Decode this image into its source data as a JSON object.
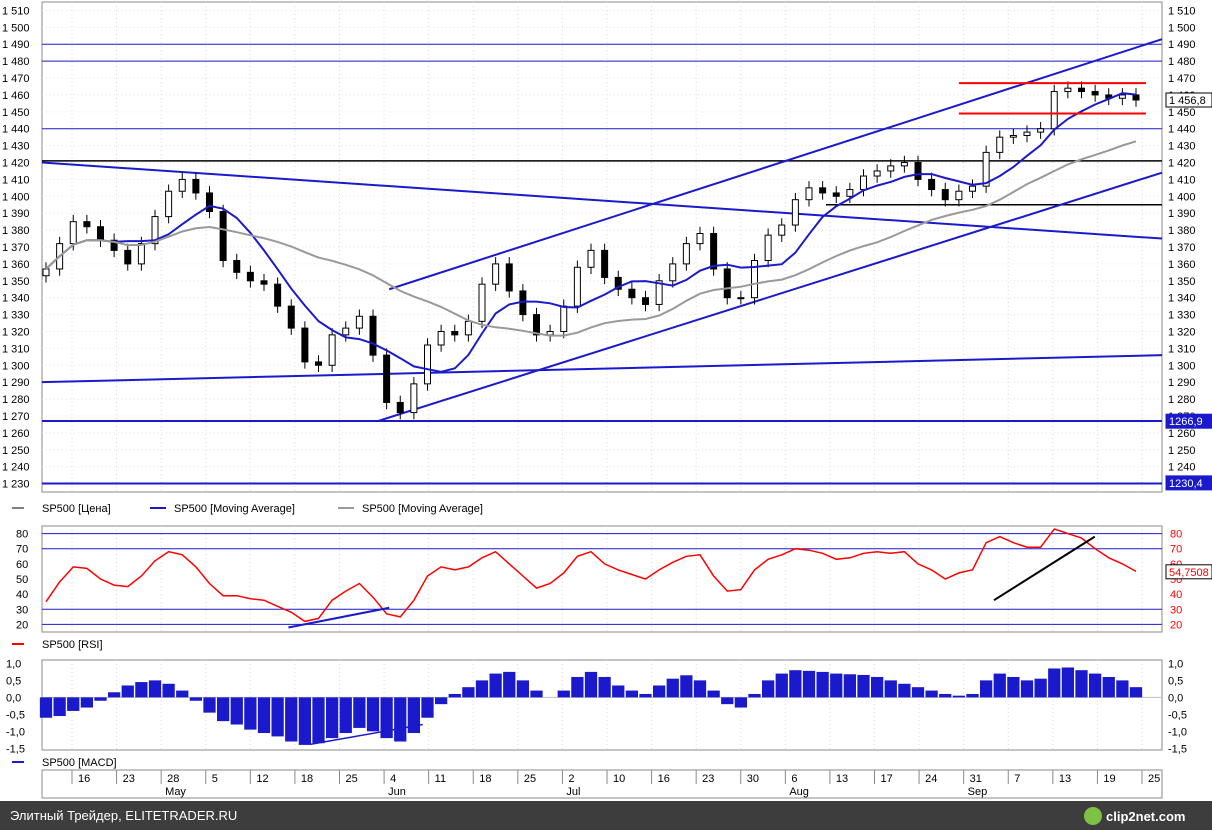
{
  "chart_data": [
    {
      "type": "candlestick",
      "symbol": "SP500",
      "ylim": [
        1225,
        1515
      ],
      "y_ticks": [
        "1 230",
        "1 240",
        "1 250",
        "1 260",
        "1 270",
        "1 280",
        "1 290",
        "1 300",
        "1 310",
        "1 320",
        "1 330",
        "1 340",
        "1 350",
        "1 360",
        "1 370",
        "1 380",
        "1 390",
        "1 400",
        "1 410",
        "1 420",
        "1 430",
        "1 440",
        "1 450",
        "1 460",
        "1 470",
        "1 480",
        "1 490",
        "1 500",
        "1 510"
      ],
      "legend": [
        "SP500 [Цена]",
        "SP500 [Moving Average]",
        "SP500 [Moving Average]"
      ],
      "price_labels": {
        "last": "1 456,8",
        "support": "1266,9",
        "low": "1230,4"
      },
      "horizontal_levels": [
        1490,
        1480,
        1440,
        1421,
        1395,
        1267,
        1230
      ],
      "trend_lines": [
        {
          "from": [
            0,
            1420
          ],
          "to": [
            1,
            1375
          ],
          "color": "#1a1acc"
        },
        {
          "from": [
            0,
            1290
          ],
          "to": [
            1,
            1306
          ],
          "color": "#1a1acc"
        },
        {
          "from": [
            0.31,
            1345
          ],
          "to": [
            1,
            1493
          ],
          "color": "#1a1acc"
        },
        {
          "from": [
            0.3,
            1267
          ],
          "to": [
            1,
            1414
          ],
          "color": "#1a1acc"
        }
      ],
      "series": [
        {
          "name": "SP500 [Цена]",
          "close": [
            1357,
            1372,
            1385,
            1382,
            1374,
            1368,
            1360,
            1372,
            1388,
            1403,
            1410,
            1402,
            1391,
            1362,
            1355,
            1350,
            1348,
            1335,
            1322,
            1302,
            1300,
            1318,
            1322,
            1329,
            1306,
            1278,
            1272,
            1289,
            1312,
            1320,
            1318,
            1326,
            1348,
            1360,
            1344,
            1330,
            1318,
            1320,
            1335,
            1358,
            1368,
            1352,
            1345,
            1340,
            1336,
            1350,
            1360,
            1372,
            1378,
            1357,
            1340,
            1340,
            1362,
            1377,
            1383,
            1398,
            1405,
            1402,
            1400,
            1404,
            1412,
            1415,
            1418,
            1420,
            1410,
            1404,
            1398,
            1403,
            1406,
            1426,
            1435,
            1436,
            1438,
            1440,
            1462,
            1464,
            1462,
            1460,
            1458,
            1460,
            1457
          ]
        }
      ]
    },
    {
      "type": "line",
      "symbol": "SP500",
      "legend": [
        "SP500 [RSI]"
      ],
      "ylim": [
        15,
        85
      ],
      "y_ticks": [
        "20",
        "30",
        "40",
        "50",
        "60",
        "70",
        "80"
      ],
      "right_ticks": [
        "80",
        "70",
        "60",
        "50",
        "40",
        "30",
        "20"
      ],
      "last_value": "54,7508",
      "levels": [
        80,
        70,
        30,
        20
      ],
      "series": [
        {
          "name": "SP500 [RSI]",
          "values": [
            35,
            48,
            58,
            57,
            50,
            46,
            45,
            52,
            62,
            68,
            66,
            58,
            47,
            39,
            39,
            37,
            36,
            32,
            28,
            22,
            24,
            36,
            42,
            47,
            38,
            27,
            25,
            36,
            52,
            58,
            56,
            58,
            64,
            68,
            60,
            52,
            44,
            47,
            54,
            65,
            68,
            60,
            56,
            53,
            50,
            56,
            61,
            65,
            66,
            52,
            42,
            43,
            56,
            63,
            66,
            70,
            69,
            67,
            63,
            64,
            67,
            68,
            67,
            68,
            60,
            56,
            50,
            54,
            56,
            74,
            78,
            74,
            71,
            71,
            83,
            80,
            77,
            70,
            64,
            60,
            55
          ]
        }
      ],
      "annotations": [
        {
          "from": [
            0.22,
            18
          ],
          "to": [
            0.31,
            31
          ]
        },
        {
          "from": [
            0.85,
            36
          ],
          "to": [
            0.94,
            78
          ]
        }
      ]
    },
    {
      "type": "bar",
      "symbol": "SP500",
      "legend": [
        "SP500 [MACD]"
      ],
      "ylim": [
        -1.55,
        1.1
      ],
      "y_ticks": [
        "-1,5",
        "-1,0",
        "-0,5",
        "0,0",
        "0,5",
        "1,0"
      ],
      "series": [
        {
          "name": "SP500 [MACD]",
          "values": [
            -0.6,
            -0.55,
            -0.4,
            -0.3,
            -0.1,
            0.15,
            0.35,
            0.45,
            0.5,
            0.4,
            0.2,
            -0.1,
            -0.45,
            -0.7,
            -0.8,
            -0.95,
            -1.05,
            -1.15,
            -1.3,
            -1.4,
            -1.35,
            -1.2,
            -1.05,
            -0.9,
            -1.0,
            -1.2,
            -1.3,
            -1.05,
            -0.6,
            -0.2,
            0.1,
            0.3,
            0.5,
            0.7,
            0.75,
            0.5,
            0.2,
            0.0,
            0.2,
            0.6,
            0.75,
            0.6,
            0.35,
            0.2,
            0.1,
            0.35,
            0.55,
            0.65,
            0.5,
            0.2,
            -0.2,
            -0.3,
            0.1,
            0.5,
            0.7,
            0.8,
            0.78,
            0.75,
            0.7,
            0.68,
            0.66,
            0.6,
            0.5,
            0.4,
            0.3,
            0.2,
            0.1,
            0.05,
            0.1,
            0.5,
            0.7,
            0.6,
            0.5,
            0.55,
            0.85,
            0.88,
            0.8,
            0.7,
            0.6,
            0.5,
            0.3
          ]
        }
      ],
      "annotations": [
        {
          "from": [
            0.24,
            -1.38
          ],
          "to": [
            0.34,
            -0.8
          ]
        }
      ]
    }
  ],
  "x_axis": {
    "day_ticks": [
      "16",
      "23",
      "28",
      "5",
      "12",
      "18",
      "25",
      "4",
      "11",
      "18",
      "25",
      "2",
      "10",
      "16",
      "23",
      "30",
      "6",
      "13",
      "17",
      "24",
      "31",
      "7",
      "13",
      "19",
      "25"
    ],
    "months": [
      "May",
      "Jun",
      "Jul",
      "Aug",
      "Sep"
    ]
  },
  "footer": {
    "text": "Элитный Трейдер, ELITETRADER.RU",
    "logo": "clip2net.com"
  },
  "colors": {
    "blue": "#1a1acc",
    "red": "#ff0000",
    "gray": "#999999",
    "black": "#000000"
  }
}
